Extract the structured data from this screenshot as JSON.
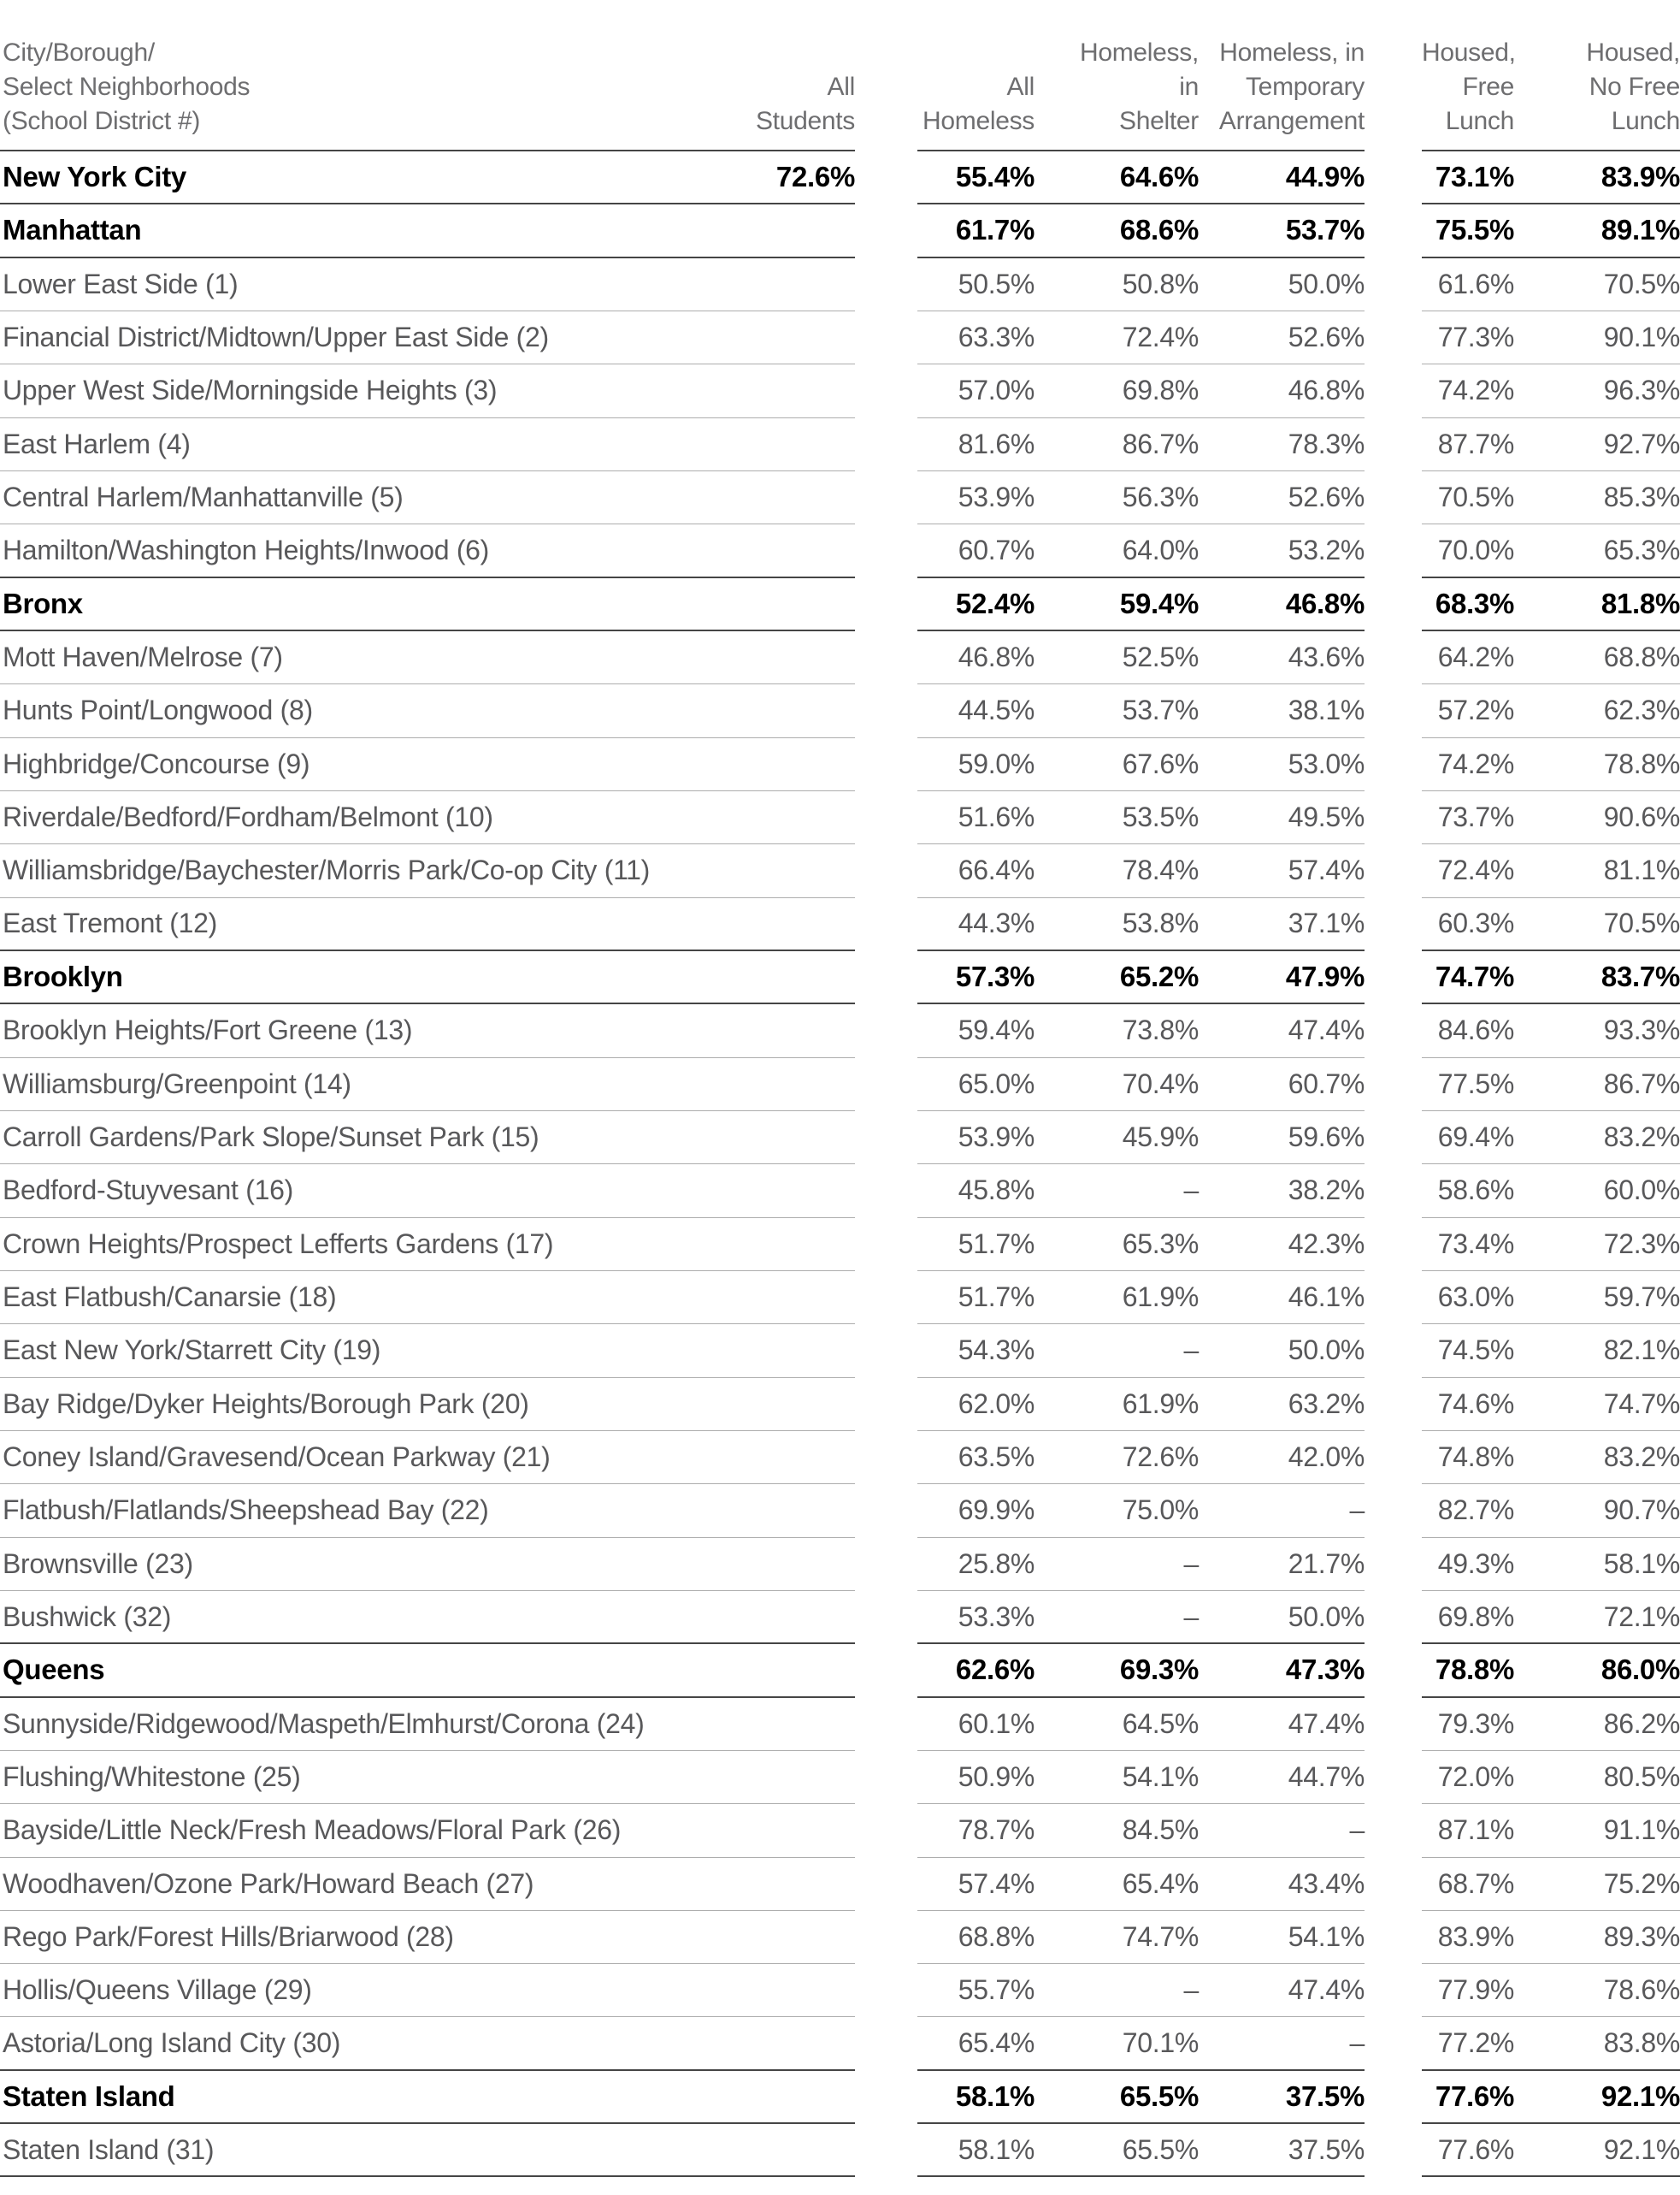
{
  "chart_data": {
    "type": "table",
    "columns": [
      {
        "id": "name",
        "label": "City/Borough/\nSelect Neighborhoods\n(School District #)"
      },
      {
        "id": "all_students",
        "label": "All\nStudents"
      },
      {
        "id": "all_homeless",
        "label": "All\nHomeless"
      },
      {
        "id": "homeless_shelter",
        "label": "Homeless,\nin\nShelter"
      },
      {
        "id": "homeless_temporary",
        "label": "Homeless, in\nTemporary\nArrangement"
      },
      {
        "id": "housed_free_lunch",
        "label": "Housed,\nFree\nLunch"
      },
      {
        "id": "housed_no_free_lunch",
        "label": "Housed,\nNo Free\nLunch"
      }
    ],
    "rows": [
      {
        "name": "New York City",
        "bold": true,
        "all_students": "72.6%",
        "values": [
          "55.4%",
          "64.6%",
          "44.9%",
          "73.1%",
          "83.9%"
        ]
      },
      {
        "name": "Manhattan",
        "bold": true,
        "all_students": "",
        "values": [
          "61.7%",
          "68.6%",
          "53.7%",
          "75.5%",
          "89.1%"
        ]
      },
      {
        "name": "Lower East Side (1)",
        "bold": false,
        "all_students": "",
        "values": [
          "50.5%",
          "50.8%",
          "50.0%",
          "61.6%",
          "70.5%"
        ]
      },
      {
        "name": "Financial District/Midtown/Upper East Side (2)",
        "bold": false,
        "all_students": "",
        "values": [
          "63.3%",
          "72.4%",
          "52.6%",
          "77.3%",
          "90.1%"
        ]
      },
      {
        "name": "Upper West Side/Morningside Heights (3)",
        "bold": false,
        "all_students": "",
        "values": [
          "57.0%",
          "69.8%",
          "46.8%",
          "74.2%",
          "96.3%"
        ]
      },
      {
        "name": "East Harlem (4)",
        "bold": false,
        "all_students": "",
        "values": [
          "81.6%",
          "86.7%",
          "78.3%",
          "87.7%",
          "92.7%"
        ]
      },
      {
        "name": "Central Harlem/Manhattanville (5)",
        "bold": false,
        "all_students": "",
        "values": [
          "53.9%",
          "56.3%",
          "52.6%",
          "70.5%",
          "85.3%"
        ]
      },
      {
        "name": "Hamilton/Washington Heights/Inwood (6)",
        "bold": false,
        "all_students": "",
        "values": [
          "60.7%",
          "64.0%",
          "53.2%",
          "70.0%",
          "65.3%"
        ]
      },
      {
        "name": "Bronx",
        "bold": true,
        "all_students": "",
        "values": [
          "52.4%",
          "59.4%",
          "46.8%",
          "68.3%",
          "81.8%"
        ]
      },
      {
        "name": "Mott Haven/Melrose (7)",
        "bold": false,
        "all_students": "",
        "values": [
          "46.8%",
          "52.5%",
          "43.6%",
          "64.2%",
          "68.8%"
        ]
      },
      {
        "name": "Hunts Point/Longwood (8)",
        "bold": false,
        "all_students": "",
        "values": [
          "44.5%",
          "53.7%",
          "38.1%",
          "57.2%",
          "62.3%"
        ]
      },
      {
        "name": "Highbridge/Concourse (9)",
        "bold": false,
        "all_students": "",
        "values": [
          "59.0%",
          "67.6%",
          "53.0%",
          "74.2%",
          "78.8%"
        ]
      },
      {
        "name": "Riverdale/Bedford/Fordham/Belmont (10)",
        "bold": false,
        "all_students": "",
        "values": [
          "51.6%",
          "53.5%",
          "49.5%",
          "73.7%",
          "90.6%"
        ]
      },
      {
        "name": "Williamsbridge/Baychester/Morris Park/Co-op City (11)",
        "bold": false,
        "all_students": "",
        "values": [
          "66.4%",
          "78.4%",
          "57.4%",
          "72.4%",
          "81.1%"
        ]
      },
      {
        "name": "East Tremont (12)",
        "bold": false,
        "all_students": "",
        "values": [
          "44.3%",
          "53.8%",
          "37.1%",
          "60.3%",
          "70.5%"
        ]
      },
      {
        "name": "Brooklyn",
        "bold": true,
        "all_students": "",
        "values": [
          "57.3%",
          "65.2%",
          "47.9%",
          "74.7%",
          "83.7%"
        ]
      },
      {
        "name": "Brooklyn Heights/Fort Greene (13)",
        "bold": false,
        "all_students": "",
        "values": [
          "59.4%",
          "73.8%",
          "47.4%",
          "84.6%",
          "93.3%"
        ]
      },
      {
        "name": "Williamsburg/Greenpoint (14)",
        "bold": false,
        "all_students": "",
        "values": [
          "65.0%",
          "70.4%",
          "60.7%",
          "77.5%",
          "86.7%"
        ]
      },
      {
        "name": "Carroll Gardens/Park Slope/Sunset Park (15)",
        "bold": false,
        "all_students": "",
        "values": [
          "53.9%",
          "45.9%",
          "59.6%",
          "69.4%",
          "83.2%"
        ]
      },
      {
        "name": "Bedford-Stuyvesant (16)",
        "bold": false,
        "all_students": "",
        "values": [
          "45.8%",
          "–",
          "38.2%",
          "58.6%",
          "60.0%"
        ]
      },
      {
        "name": "Crown Heights/Prospect Lefferts Gardens (17)",
        "bold": false,
        "all_students": "",
        "values": [
          "51.7%",
          "65.3%",
          "42.3%",
          "73.4%",
          "72.3%"
        ]
      },
      {
        "name": "East Flatbush/Canarsie (18)",
        "bold": false,
        "all_students": "",
        "values": [
          "51.7%",
          "61.9%",
          "46.1%",
          "63.0%",
          "59.7%"
        ]
      },
      {
        "name": "East New York/Starrett City (19)",
        "bold": false,
        "all_students": "",
        "values": [
          "54.3%",
          "–",
          "50.0%",
          "74.5%",
          "82.1%"
        ]
      },
      {
        "name": "Bay Ridge/Dyker Heights/Borough Park (20)",
        "bold": false,
        "all_students": "",
        "values": [
          "62.0%",
          "61.9%",
          "63.2%",
          "74.6%",
          "74.7%"
        ]
      },
      {
        "name": "Coney Island/Gravesend/Ocean Parkway (21)",
        "bold": false,
        "all_students": "",
        "values": [
          "63.5%",
          "72.6%",
          "42.0%",
          "74.8%",
          "83.2%"
        ]
      },
      {
        "name": "Flatbush/Flatlands/Sheepshead Bay (22)",
        "bold": false,
        "all_students": "",
        "values": [
          "69.9%",
          "75.0%",
          "–",
          "82.7%",
          "90.7%"
        ]
      },
      {
        "name": "Brownsville (23)",
        "bold": false,
        "all_students": "",
        "values": [
          "25.8%",
          "–",
          "21.7%",
          "49.3%",
          "58.1%"
        ]
      },
      {
        "name": "Bushwick (32)",
        "bold": false,
        "all_students": "",
        "values": [
          "53.3%",
          "–",
          "50.0%",
          "69.8%",
          "72.1%"
        ]
      },
      {
        "name": "Queens",
        "bold": true,
        "all_students": "",
        "values": [
          "62.6%",
          "69.3%",
          "47.3%",
          "78.8%",
          "86.0%"
        ]
      },
      {
        "name": "Sunnyside/Ridgewood/Maspeth/Elmhurst/Corona (24)",
        "bold": false,
        "all_students": "",
        "values": [
          "60.1%",
          "64.5%",
          "47.4%",
          "79.3%",
          "86.2%"
        ]
      },
      {
        "name": "Flushing/Whitestone (25)",
        "bold": false,
        "all_students": "",
        "values": [
          "50.9%",
          "54.1%",
          "44.7%",
          "72.0%",
          "80.5%"
        ]
      },
      {
        "name": "Bayside/Little Neck/Fresh Meadows/Floral Park (26)",
        "bold": false,
        "all_students": "",
        "values": [
          "78.7%",
          "84.5%",
          "–",
          "87.1%",
          "91.1%"
        ]
      },
      {
        "name": "Woodhaven/Ozone Park/Howard Beach (27)",
        "bold": false,
        "all_students": "",
        "values": [
          "57.4%",
          "65.4%",
          "43.4%",
          "68.7%",
          "75.2%"
        ]
      },
      {
        "name": "Rego Park/Forest Hills/Briarwood (28)",
        "bold": false,
        "all_students": "",
        "values": [
          "68.8%",
          "74.7%",
          "54.1%",
          "83.9%",
          "89.3%"
        ]
      },
      {
        "name": "Hollis/Queens Village (29)",
        "bold": false,
        "all_students": "",
        "values": [
          "55.7%",
          "–",
          "47.4%",
          "77.9%",
          "78.6%"
        ]
      },
      {
        "name": "Astoria/Long Island City (30)",
        "bold": false,
        "all_students": "",
        "values": [
          "65.4%",
          "70.1%",
          "–",
          "77.2%",
          "83.8%"
        ]
      },
      {
        "name": "Staten Island",
        "bold": true,
        "all_students": "",
        "values": [
          "58.1%",
          "65.5%",
          "37.5%",
          "77.6%",
          "92.1%"
        ]
      },
      {
        "name": "Staten Island (31)",
        "bold": false,
        "all_students": "",
        "values": [
          "58.1%",
          "65.5%",
          "37.5%",
          "77.6%",
          "92.1%"
        ]
      }
    ],
    "no_data_marker": "–",
    "layout": {
      "grid": "horizontal rules only, three ruled column blocks with gaps",
      "legend": "none"
    }
  },
  "colors": {
    "background": "#ffffff",
    "text_gray": "#58585a",
    "head_gray": "#6e6e70",
    "text_black": "#000000",
    "rule_light": "#adadad",
    "rule_dark": "#454545"
  }
}
